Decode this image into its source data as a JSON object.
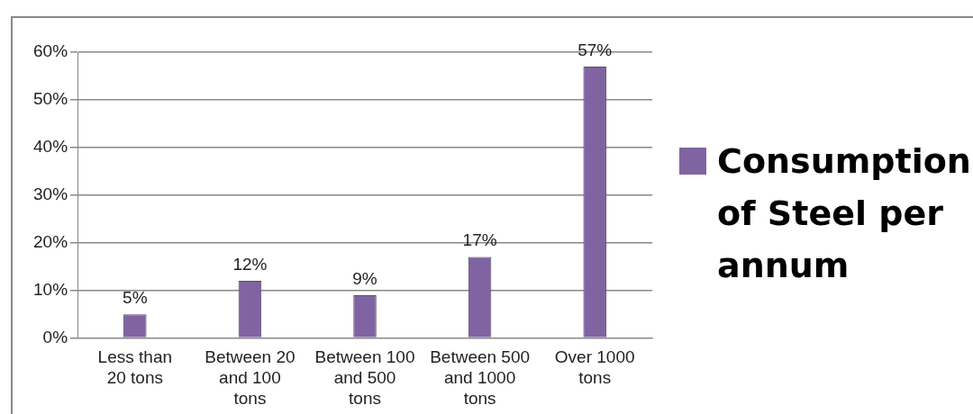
{
  "chart_data": {
    "type": "bar",
    "categories": [
      "Less than 20 tons",
      "Between 20 and 100 tons",
      "Between 100 and 500 tons",
      "Between 500 and 1000 tons",
      "Over 1000 tons"
    ],
    "series": [
      {
        "name": "Consumption of Steel per annum",
        "color": "#8064a2",
        "values": [
          5,
          12,
          9,
          17,
          57
        ]
      }
    ],
    "ylim": [
      0,
      60
    ],
    "yticks": [
      {
        "value": 0,
        "label": "0%"
      },
      {
        "value": 10,
        "label": "10%"
      },
      {
        "value": 20,
        "label": "20%"
      },
      {
        "value": 30,
        "label": "30%"
      },
      {
        "value": 40,
        "label": "40%"
      },
      {
        "value": 50,
        "label": "50%"
      },
      {
        "value": 60,
        "label": "60%"
      }
    ],
    "value_labels": [
      "5%",
      "12%",
      "9%",
      "17%",
      "57%"
    ],
    "grid": "y",
    "legend": "right"
  }
}
